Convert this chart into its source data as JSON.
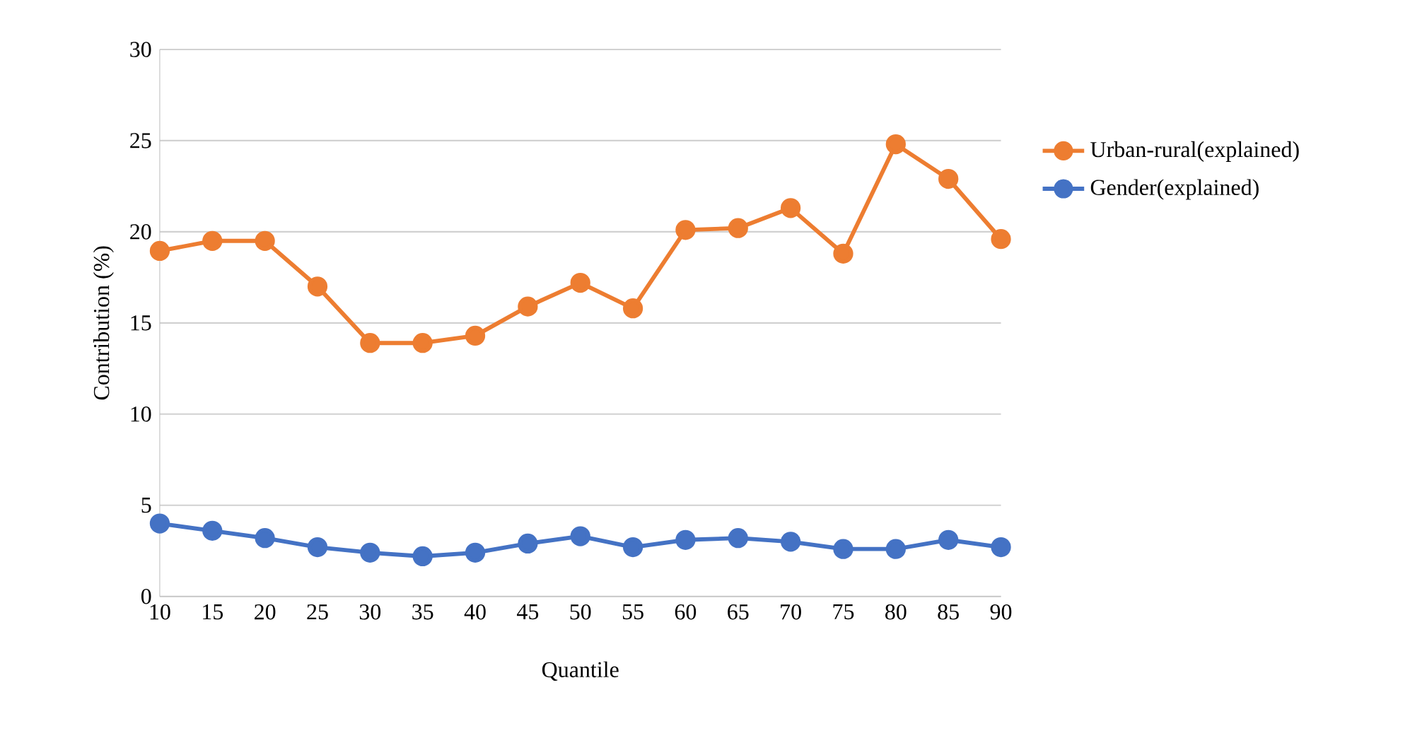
{
  "chart_data": {
    "type": "line",
    "xlabel": "Quantile",
    "ylabel": "Contribution (%)",
    "categories": [
      "10",
      "15",
      "20",
      "25",
      "30",
      "35",
      "40",
      "45",
      "50",
      "55",
      "60",
      "65",
      "70",
      "75",
      "80",
      "85",
      "90"
    ],
    "series": [
      {
        "name": "Urban-rural(explained)",
        "color": "#ed7d31",
        "values": [
          18.95,
          19.5,
          19.5,
          17.0,
          13.9,
          13.9,
          14.3,
          15.9,
          17.2,
          15.8,
          20.1,
          20.2,
          21.3,
          18.8,
          24.8,
          22.9,
          19.6
        ]
      },
      {
        "name": "Gender(explained)",
        "color": "#4472c4",
        "values": [
          4.0,
          3.6,
          3.2,
          2.7,
          2.4,
          2.2,
          2.4,
          2.9,
          3.3,
          2.7,
          3.1,
          3.2,
          3.0,
          2.6,
          2.6,
          3.1,
          2.7
        ]
      }
    ],
    "ylim": [
      0,
      30
    ],
    "yticks": [
      0,
      5,
      10,
      15,
      20,
      25,
      30
    ],
    "grid": "y",
    "legend": "right",
    "marker": "circle"
  }
}
